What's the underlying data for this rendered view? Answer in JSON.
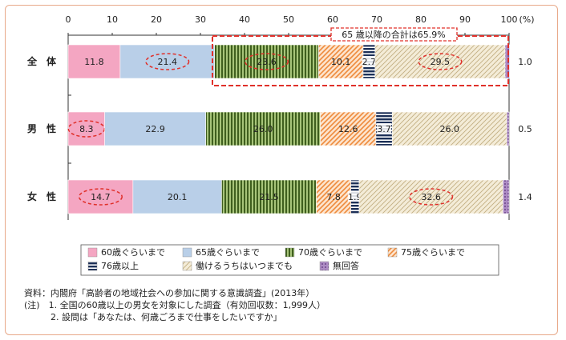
{
  "chart_data": {
    "type": "bar",
    "orientation": "horizontal",
    "stacked": true,
    "xlim": [
      0,
      100
    ],
    "x_ticks": [
      "0",
      "10",
      "20",
      "30",
      "40",
      "50",
      "60",
      "70",
      "80",
      "90",
      "100"
    ],
    "x_unit": "(%)",
    "categories": [
      "全　体",
      "男　性",
      "女　性"
    ],
    "series": [
      {
        "name": "60歳ぐらいまで",
        "color": "#f4a6c2",
        "values": [
          11.8,
          8.3,
          14.7
        ]
      },
      {
        "name": "65歳ぐらいまで",
        "color": "#b9cfe8",
        "values": [
          21.4,
          22.9,
          20.1
        ]
      },
      {
        "name": "70歳ぐらいまで",
        "color": "#5f7f2e",
        "values": [
          23.6,
          26.0,
          21.5
        ]
      },
      {
        "name": "75歳ぐらいまで",
        "color": "#ee9448",
        "values": [
          10.1,
          12.6,
          7.8
        ]
      },
      {
        "name": "76歳以上",
        "color": "#1c2f57",
        "values": [
          2.7,
          3.7,
          1.9
        ]
      },
      {
        "name": "働けるうちはいつまでも",
        "color": "#d8c9a2",
        "values": [
          29.5,
          26.0,
          32.6
        ]
      },
      {
        "name": "無回答",
        "color": "#7d4e9a",
        "values": [
          1.0,
          0.5,
          1.4
        ]
      }
    ],
    "bar_labels": [
      [
        "11.8",
        "21.4",
        "23.6",
        "10.1",
        "2.7",
        "29.5"
      ],
      [
        "8.3",
        "22.9",
        "26.0",
        "12.6",
        "3.7",
        "26.0"
      ],
      [
        "14.7",
        "20.1",
        "21.5",
        "7.8",
        "1.9",
        "32.6"
      ]
    ],
    "no_answer_labels": [
      "1.0",
      "0.5",
      "1.4"
    ],
    "highlighted": [
      [
        1,
        2,
        5
      ],
      [
        0
      ],
      [
        0,
        5
      ]
    ],
    "annotation": "65 歳以降の合計は65.9%"
  },
  "notes": [
    "資料：内閣府「高齢者の地域社会への参加に関する意識調査」(2013年）",
    "(注)　1. 全国の60歳以上の男女を対象にした調査（有効回収数：1,999人）",
    "　　　2. 設問は「あなたは、何歳ごろまで仕事をしたいですか」"
  ]
}
